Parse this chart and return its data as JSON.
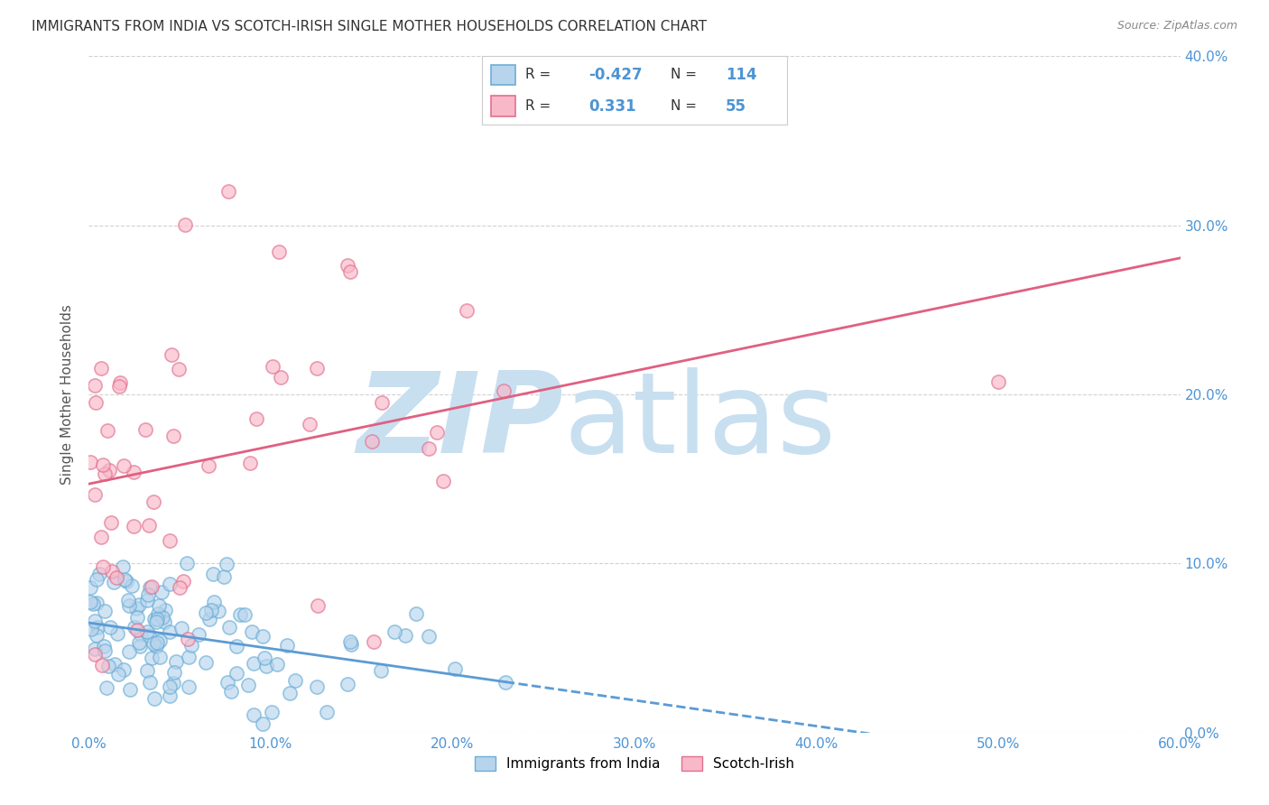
{
  "title": "IMMIGRANTS FROM INDIA VS SCOTCH-IRISH SINGLE MOTHER HOUSEHOLDS CORRELATION CHART",
  "source": "Source: ZipAtlas.com",
  "ylabel": "Single Mother Households",
  "xlabel_india": "Immigrants from India",
  "xlabel_scotch": "Scotch-Irish",
  "R_india": -0.427,
  "N_india": 114,
  "R_scotch": 0.331,
  "N_scotch": 55,
  "x_min": 0.0,
  "x_max": 0.6,
  "y_min": 0.0,
  "y_max": 0.4,
  "color_india_face": "#b8d4ed",
  "color_india_edge": "#6aaed6",
  "color_scotch_face": "#f9b8c8",
  "color_scotch_edge": "#e07090",
  "color_line_india": "#5b9bd5",
  "color_line_scotch": "#e06080",
  "color_axis_ticks": "#4d94d4",
  "watermark_zip_color": "#c8dff0",
  "watermark_atlas_color": "#c8dff0",
  "background_color": "#ffffff",
  "grid_color": "#cccccc",
  "title_color": "#333333",
  "source_color": "#888888",
  "legend_border_color": "#cccccc",
  "ylabel_color": "#555555"
}
